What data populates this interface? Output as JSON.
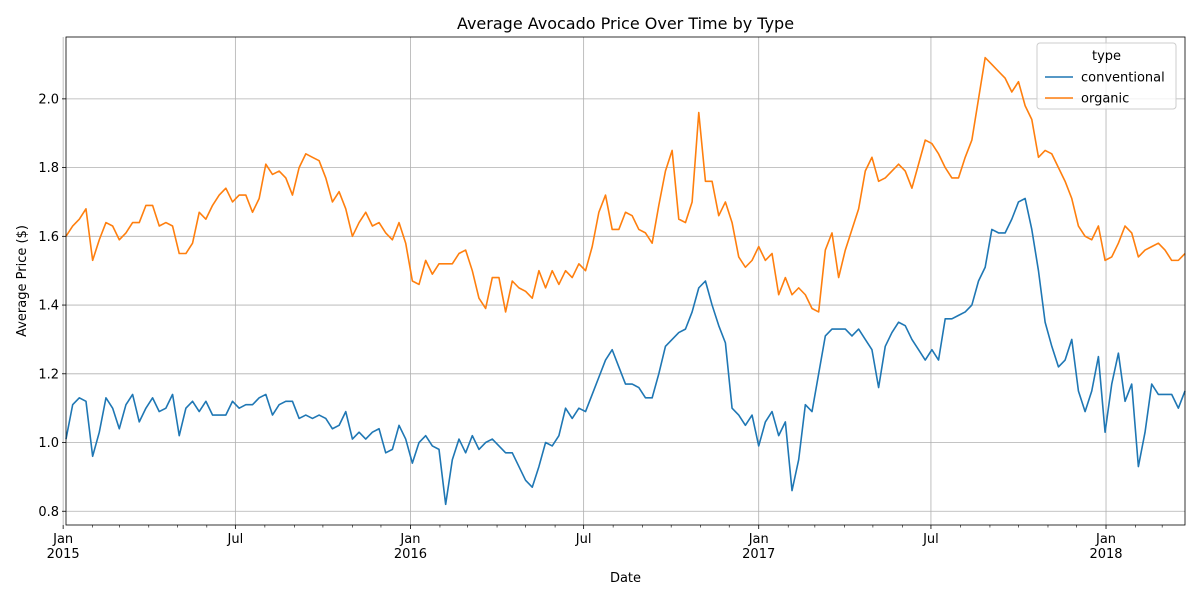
{
  "chart_data": {
    "type": "line",
    "title": "Average Avocado Price Over Time by Type",
    "xlabel": "Date",
    "ylabel": "Average Price ($)",
    "xlim": [
      "2015-01-04",
      "2018-03-25"
    ],
    "ylim": [
      0.76,
      2.18
    ],
    "yticks": [
      0.8,
      1.0,
      1.2,
      1.4,
      1.6,
      1.8,
      2.0
    ],
    "ytick_labels": [
      "0.8",
      "1.0",
      "1.2",
      "1.4",
      "1.6",
      "1.8",
      "2.0"
    ],
    "xticks": [
      {
        "date": "2015-01-01",
        "label": "Jan",
        "sublabel": "2015",
        "major": true
      },
      {
        "date": "2015-07-01",
        "label": "Jul",
        "sublabel": "",
        "major": false
      },
      {
        "date": "2016-01-01",
        "label": "Jan",
        "sublabel": "2016",
        "major": true
      },
      {
        "date": "2016-07-01",
        "label": "Jul",
        "sublabel": "",
        "major": false
      },
      {
        "date": "2017-01-01",
        "label": "Jan",
        "sublabel": "2017",
        "major": true
      },
      {
        "date": "2017-07-01",
        "label": "Jul",
        "sublabel": "",
        "major": false
      },
      {
        "date": "2018-01-01",
        "label": "Jan",
        "sublabel": "2018",
        "major": true
      }
    ],
    "grid": true,
    "legend": {
      "title": "type",
      "position": "top-right"
    },
    "x_start": "2015-01-04",
    "x_step_days": 7,
    "series": [
      {
        "name": "conventional",
        "color": "#1f77b4",
        "values": [
          1.01,
          1.11,
          1.13,
          1.12,
          0.96,
          1.03,
          1.13,
          1.1,
          1.04,
          1.11,
          1.14,
          1.06,
          1.1,
          1.13,
          1.09,
          1.1,
          1.14,
          1.02,
          1.1,
          1.12,
          1.09,
          1.12,
          1.08,
          1.08,
          1.08,
          1.12,
          1.1,
          1.11,
          1.11,
          1.13,
          1.14,
          1.08,
          1.11,
          1.12,
          1.12,
          1.07,
          1.08,
          1.07,
          1.08,
          1.07,
          1.04,
          1.05,
          1.09,
          1.01,
          1.03,
          1.01,
          1.03,
          1.04,
          0.97,
          0.98,
          1.05,
          1.01,
          0.94,
          1.0,
          1.02,
          0.99,
          0.98,
          0.82,
          0.95,
          1.01,
          0.97,
          1.02,
          0.98,
          1.0,
          1.01,
          0.99,
          0.97,
          0.97,
          0.93,
          0.89,
          0.87,
          0.93,
          1.0,
          0.99,
          1.02,
          1.1,
          1.07,
          1.1,
          1.09,
          1.14,
          1.19,
          1.24,
          1.27,
          1.22,
          1.17,
          1.17,
          1.16,
          1.13,
          1.13,
          1.2,
          1.28,
          1.3,
          1.32,
          1.33,
          1.38,
          1.45,
          1.47,
          1.4,
          1.34,
          1.29,
          1.1,
          1.08,
          1.05,
          1.08,
          0.99,
          1.06,
          1.09,
          1.02,
          1.06,
          0.86,
          0.95,
          1.11,
          1.09,
          1.2,
          1.31,
          1.33,
          1.33,
          1.33,
          1.31,
          1.33,
          1.3,
          1.27,
          1.16,
          1.28,
          1.32,
          1.35,
          1.34,
          1.3,
          1.27,
          1.24,
          1.27,
          1.24,
          1.36,
          1.36,
          1.37,
          1.38,
          1.4,
          1.47,
          1.51,
          1.62,
          1.61,
          1.61,
          1.65,
          1.7,
          1.71,
          1.62,
          1.5,
          1.35,
          1.28,
          1.22,
          1.24,
          1.3,
          1.15,
          1.09,
          1.15,
          1.25,
          1.03,
          1.17,
          1.26,
          1.12,
          1.17,
          0.93,
          1.03,
          1.17,
          1.14,
          1.14,
          1.14,
          1.1,
          1.15
        ]
      },
      {
        "name": "organic",
        "color": "#ff7f0e",
        "values": [
          1.6,
          1.63,
          1.65,
          1.68,
          1.53,
          1.59,
          1.64,
          1.63,
          1.59,
          1.61,
          1.64,
          1.64,
          1.69,
          1.69,
          1.63,
          1.64,
          1.63,
          1.55,
          1.55,
          1.58,
          1.67,
          1.65,
          1.69,
          1.72,
          1.74,
          1.7,
          1.72,
          1.72,
          1.67,
          1.71,
          1.81,
          1.78,
          1.79,
          1.77,
          1.72,
          1.8,
          1.84,
          1.83,
          1.82,
          1.77,
          1.7,
          1.73,
          1.68,
          1.6,
          1.64,
          1.67,
          1.63,
          1.64,
          1.61,
          1.59,
          1.64,
          1.58,
          1.47,
          1.46,
          1.53,
          1.49,
          1.52,
          1.52,
          1.52,
          1.55,
          1.56,
          1.5,
          1.42,
          1.39,
          1.48,
          1.48,
          1.38,
          1.47,
          1.45,
          1.44,
          1.42,
          1.5,
          1.45,
          1.5,
          1.46,
          1.5,
          1.48,
          1.52,
          1.5,
          1.57,
          1.67,
          1.72,
          1.62,
          1.62,
          1.67,
          1.66,
          1.62,
          1.61,
          1.58,
          1.69,
          1.79,
          1.85,
          1.65,
          1.64,
          1.7,
          1.96,
          1.76,
          1.76,
          1.66,
          1.7,
          1.64,
          1.54,
          1.51,
          1.53,
          1.57,
          1.53,
          1.55,
          1.43,
          1.48,
          1.43,
          1.45,
          1.43,
          1.39,
          1.38,
          1.56,
          1.61,
          1.48,
          1.56,
          1.62,
          1.68,
          1.79,
          1.83,
          1.76,
          1.77,
          1.79,
          1.81,
          1.79,
          1.74,
          1.81,
          1.88,
          1.87,
          1.84,
          1.8,
          1.77,
          1.77,
          1.83,
          1.88,
          2.0,
          2.12,
          2.1,
          2.08,
          2.06,
          2.02,
          2.05,
          1.98,
          1.94,
          1.83,
          1.85,
          1.84,
          1.8,
          1.76,
          1.71,
          1.63,
          1.6,
          1.59,
          1.63,
          1.53,
          1.54,
          1.58,
          1.63,
          1.61,
          1.54,
          1.56,
          1.57,
          1.58,
          1.56,
          1.53,
          1.53,
          1.55
        ]
      }
    ]
  }
}
